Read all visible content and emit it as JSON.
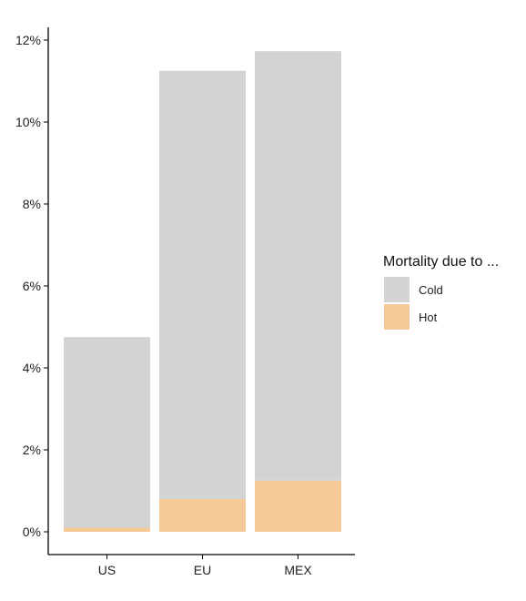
{
  "chart_data": {
    "type": "bar",
    "stacked": true,
    "title": "",
    "xlabel": "",
    "ylabel": "",
    "categories": [
      "US",
      "EU",
      "MEX"
    ],
    "series": [
      {
        "name": "Hot",
        "values": [
          0.1,
          0.8,
          1.25
        ],
        "color": "#f6c999"
      },
      {
        "name": "Cold",
        "values": [
          4.65,
          10.45,
          10.48
        ],
        "color": "#d3d3d3"
      }
    ],
    "ylim": [
      0,
      12
    ],
    "yticks": [
      0,
      2,
      4,
      6,
      8,
      10,
      12
    ],
    "ytick_labels": [
      "0%",
      "2%",
      "4%",
      "6%",
      "8%",
      "10%",
      "12%"
    ],
    "grid": false,
    "legend": {
      "title": "Mortality due to ...",
      "placement": "right",
      "entries": [
        {
          "label": "Cold",
          "color": "#d3d3d3"
        },
        {
          "label": "Hot",
          "color": "#f6c999"
        }
      ]
    }
  }
}
